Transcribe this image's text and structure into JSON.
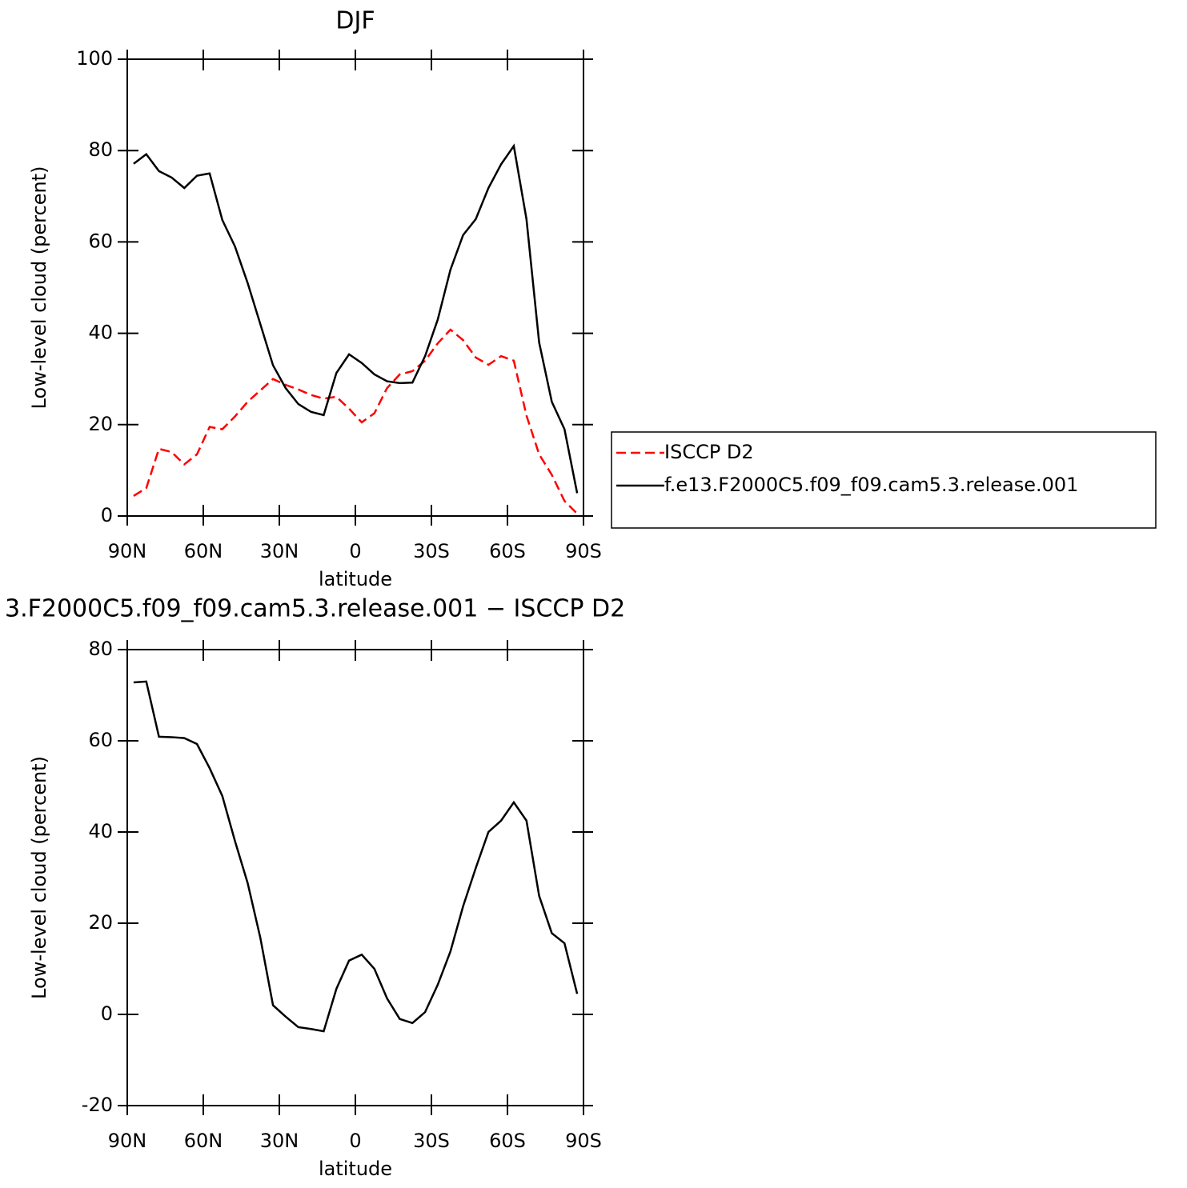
{
  "chart_data": [
    {
      "type": "line",
      "title": "DJF",
      "xlabel": "latitude",
      "ylabel": "Low-level cloud (percent)",
      "x": [
        87.5,
        82.5,
        77.5,
        72.5,
        67.5,
        62.5,
        57.5,
        52.5,
        47.5,
        42.5,
        37.5,
        32.5,
        27.5,
        22.5,
        17.5,
        12.5,
        7.5,
        2.5,
        -2.5,
        -7.5,
        -12.5,
        -17.5,
        -22.5,
        -27.5,
        -32.5,
        -37.5,
        -42.5,
        -47.5,
        -52.5,
        -57.5,
        -62.5,
        -67.5,
        -72.5,
        -77.5,
        -82.5,
        -87.5
      ],
      "xlim": [
        90,
        -90
      ],
      "xticks": [
        {
          "value": 90,
          "label": "90N"
        },
        {
          "value": 60,
          "label": "60N"
        },
        {
          "value": 30,
          "label": "30N"
        },
        0,
        {
          "value": -30,
          "label": "30S"
        },
        {
          "value": -60,
          "label": "60S"
        },
        {
          "value": -90,
          "label": "90S"
        }
      ],
      "ylim": [
        0,
        100
      ],
      "yticks": [
        0,
        20,
        40,
        60,
        80,
        100
      ],
      "legend": "right",
      "series": [
        {
          "name": "ISCCP D2",
          "color": "#ff0000",
          "dashed": true,
          "values": [
            4.4,
            6.1,
            14.7,
            14,
            11.3,
            13.5,
            19.5,
            19,
            21.8,
            25,
            27.5,
            30,
            28.7,
            27.7,
            26.5,
            25.7,
            26.1,
            23.5,
            20.5,
            22.5,
            28,
            31,
            31.7,
            34,
            37.8,
            40.8,
            38.5,
            34.7,
            33.1,
            35,
            34,
            22,
            13.5,
            9,
            3.3,
            0.5
          ]
        },
        {
          "name": "f.e13.F2000C5.f09_f09.cam5.3.release.001",
          "color": "#000000",
          "dashed": false,
          "values": [
            77.1,
            79.2,
            75.5,
            74.1,
            71.8,
            74.5,
            75,
            64.8,
            59,
            51,
            42,
            33,
            28,
            24.5,
            22.8,
            22.1,
            31.3,
            35.4,
            33.5,
            31,
            29.5,
            29.1,
            29.2,
            35,
            43,
            53.9,
            61.5,
            65,
            71.8,
            77,
            81,
            65,
            38,
            25,
            19,
            5
          ]
        }
      ]
    },
    {
      "type": "line",
      "title": "3.F2000C5.f09_f09.cam5.3.release.001 − ISCCP D2",
      "xlabel": "latitude",
      "ylabel": "Low-level cloud (percent)",
      "x": [
        87.5,
        82.5,
        77.5,
        72.5,
        67.5,
        62.5,
        57.5,
        52.5,
        47.5,
        42.5,
        37.5,
        32.5,
        27.5,
        22.5,
        17.5,
        12.5,
        7.5,
        2.5,
        -2.5,
        -7.5,
        -12.5,
        -17.5,
        -22.5,
        -27.5,
        -32.5,
        -37.5,
        -42.5,
        -47.5,
        -52.5,
        -57.5,
        -62.5,
        -67.5,
        -72.5,
        -77.5,
        -82.5,
        -87.5
      ],
      "xlim": [
        90,
        -90
      ],
      "xticks": [
        {
          "value": 90,
          "label": "90N"
        },
        {
          "value": 60,
          "label": "60N"
        },
        {
          "value": 30,
          "label": "30N"
        },
        0,
        {
          "value": -30,
          "label": "30S"
        },
        {
          "value": -60,
          "label": "60S"
        },
        {
          "value": -90,
          "label": "90S"
        }
      ],
      "ylim": [
        -20,
        80
      ],
      "yticks": [
        -20,
        0,
        20,
        40,
        60,
        80
      ],
      "series": [
        {
          "color": "#000000",
          "dashed": false,
          "values": [
            72.8,
            73,
            60.9,
            60.8,
            60.6,
            59.3,
            54,
            47.9,
            38,
            28.8,
            16.8,
            2,
            -0.5,
            -2.8,
            -3.2,
            -3.7,
            5.6,
            11.8,
            13.1,
            10,
            3.5,
            -1,
            -1.9,
            0.5,
            6.5,
            13.8,
            23.7,
            32.1,
            40,
            42.5,
            46.5,
            42.5,
            26,
            17.8,
            15.6,
            4.5
          ]
        }
      ]
    }
  ]
}
